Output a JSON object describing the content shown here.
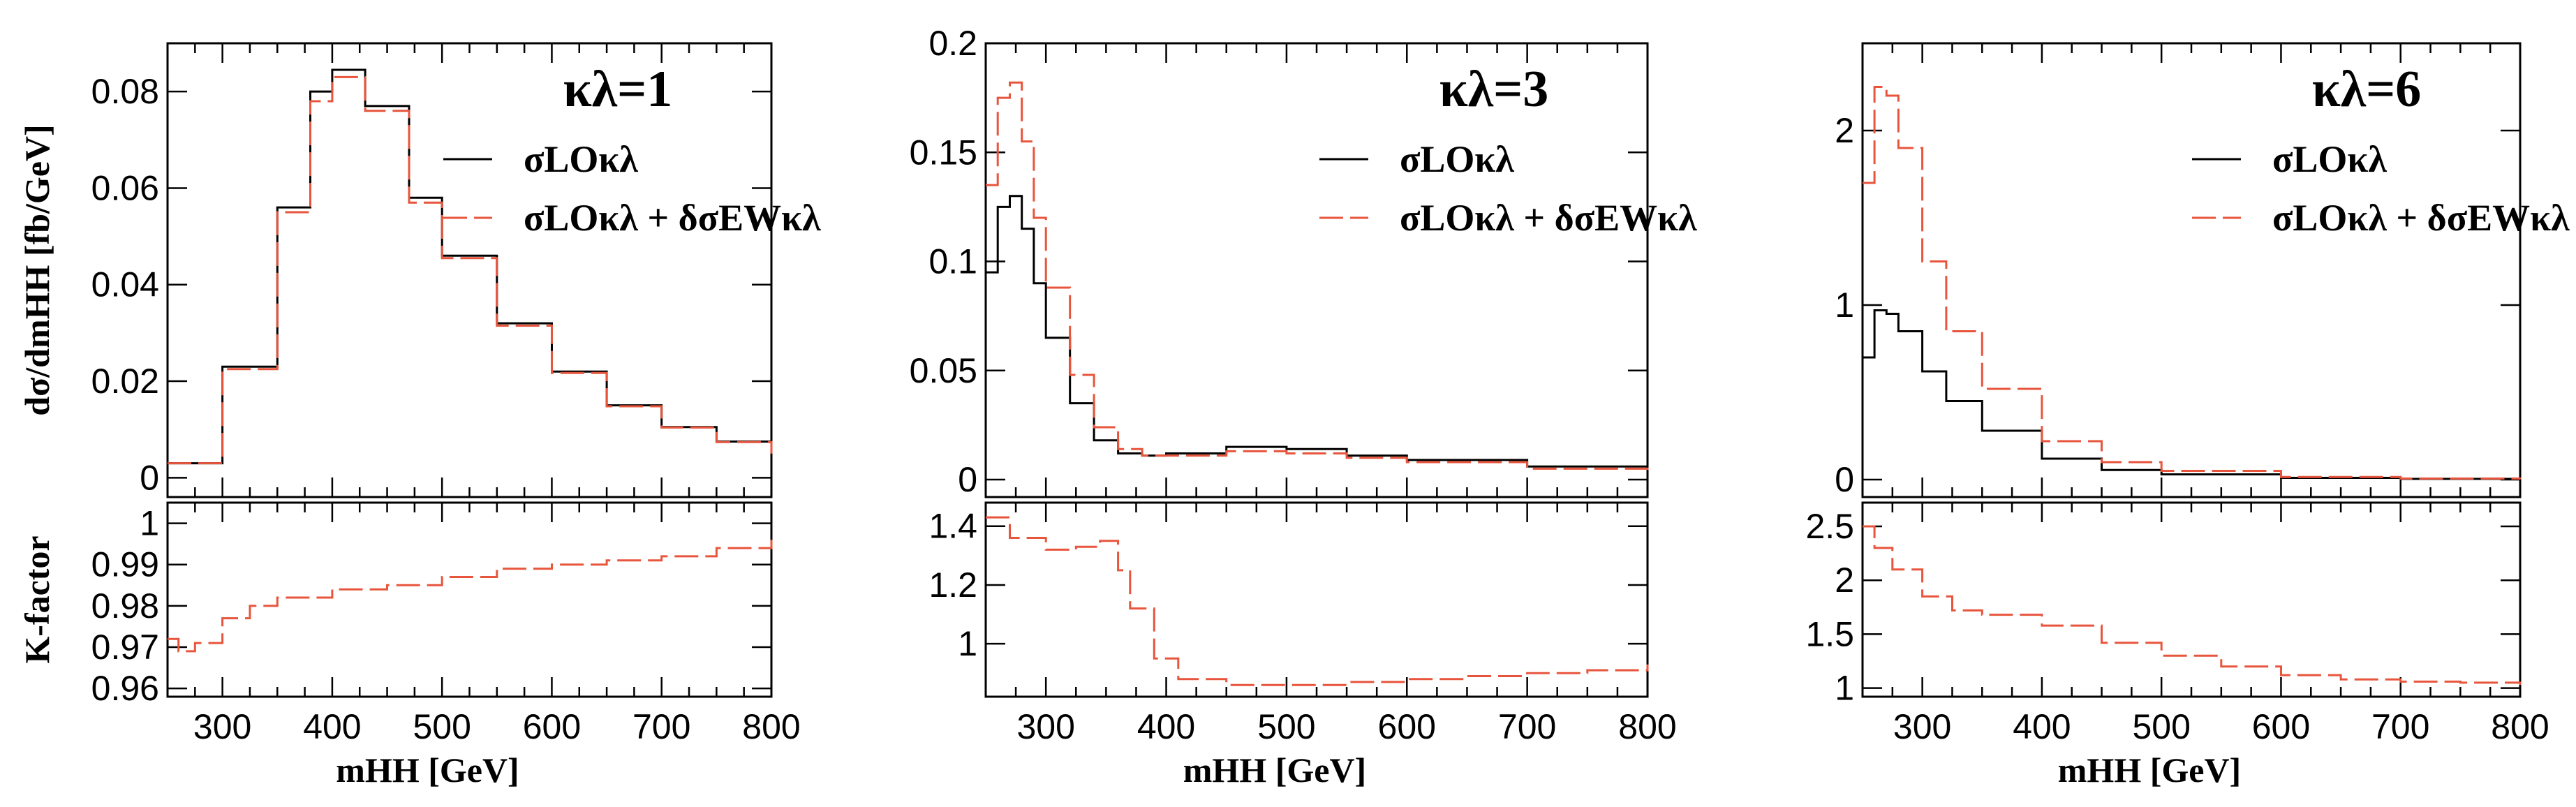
{
  "chart_data": [
    {
      "type": "line",
      "title": "κλ=1",
      "xlabel": "mHH [GeV]",
      "ylabel": "dσ/dmHH [fb/GeV]",
      "ratio_ylabel": "K-factor",
      "xlim": [
        250,
        800
      ],
      "ylim": [
        -0.004,
        0.09
      ],
      "ratio_ylim": [
        0.958,
        1.005
      ],
      "xticks": [
        300,
        400,
        500,
        600,
        700,
        800
      ],
      "xticklabels": [
        "300",
        "400",
        "500",
        "600",
        "700",
        "800"
      ],
      "yticks": [
        0,
        0.02,
        0.04,
        0.06,
        0.08
      ],
      "yticklabels": [
        "0",
        "0.02",
        "0.04",
        "0.06",
        "0.08"
      ],
      "ratio_yticks": [
        0.96,
        0.97,
        0.98,
        0.99,
        1.0
      ],
      "ratio_yticklabels": [
        "0.96",
        "0.97",
        "0.98",
        "0.99",
        "1"
      ],
      "legend": [
        {
          "label": "σLOκλ",
          "style": "solid",
          "color": "#000000"
        },
        {
          "label": "σLOκλ + δσEWκλ",
          "style": "dashed",
          "color": "#e8553d"
        }
      ],
      "legend_position": "top-right",
      "series": [
        {
          "name": "σLO",
          "color": "#000000",
          "style": "solid",
          "x": [
            250,
            300,
            350,
            380,
            400,
            430,
            470,
            500,
            550,
            600,
            650,
            700,
            750,
            800
          ],
          "values": [
            0.003,
            0.023,
            0.056,
            0.08,
            0.0845,
            0.077,
            0.058,
            0.046,
            0.032,
            0.022,
            0.015,
            0.0105,
            0.0075,
            0.005
          ]
        },
        {
          "name": "σLO + δσEW",
          "color": "#e8553d",
          "style": "dashed",
          "x": [
            250,
            300,
            350,
            380,
            400,
            430,
            470,
            500,
            550,
            600,
            650,
            700,
            750,
            800
          ],
          "values": [
            0.003,
            0.0225,
            0.055,
            0.078,
            0.083,
            0.076,
            0.057,
            0.0455,
            0.0315,
            0.0217,
            0.0148,
            0.0104,
            0.0074,
            0.005
          ]
        }
      ],
      "ratio_series": {
        "name": "K-factor",
        "color": "#e8553d",
        "x": [
          250,
          260,
          275,
          300,
          325,
          350,
          400,
          450,
          500,
          550,
          600,
          650,
          700,
          750,
          800
        ],
        "values": [
          0.972,
          0.969,
          0.971,
          0.977,
          0.98,
          0.982,
          0.984,
          0.985,
          0.987,
          0.989,
          0.99,
          0.991,
          0.992,
          0.994,
          0.996
        ]
      }
    },
    {
      "type": "line",
      "title": "κλ=3",
      "xlabel": "mHH [GeV]",
      "ylabel": "",
      "ratio_ylabel": "",
      "xlim": [
        250,
        800
      ],
      "ylim": [
        -0.008,
        0.2
      ],
      "ratio_ylim": [
        0.82,
        1.48
      ],
      "xticks": [
        300,
        400,
        500,
        600,
        700,
        800
      ],
      "xticklabels": [
        "300",
        "400",
        "500",
        "600",
        "700",
        "800"
      ],
      "yticks": [
        0,
        0.05,
        0.1,
        0.15,
        0.2
      ],
      "yticklabels": [
        "0",
        "0.05",
        "0.1",
        "0.15",
        "0.2"
      ],
      "ratio_yticks": [
        1.0,
        1.2,
        1.4
      ],
      "ratio_yticklabels": [
        "1",
        "1.2",
        "1.4"
      ],
      "legend": [
        {
          "label": "σLOκλ",
          "style": "solid",
          "color": "#000000"
        },
        {
          "label": "σLOκλ + δσEWκλ",
          "style": "dashed",
          "color": "#e8553d"
        }
      ],
      "legend_position": "top-right",
      "series": [
        {
          "name": "σLO",
          "color": "#000000",
          "style": "solid",
          "x": [
            250,
            260,
            270,
            280,
            290,
            300,
            320,
            340,
            360,
            380,
            400,
            450,
            500,
            550,
            600,
            700,
            800
          ],
          "values": [
            0.095,
            0.125,
            0.13,
            0.115,
            0.09,
            0.065,
            0.035,
            0.018,
            0.012,
            0.011,
            0.012,
            0.015,
            0.014,
            0.011,
            0.009,
            0.006,
            0.003
          ]
        },
        {
          "name": "σLO + δσEW",
          "color": "#e8553d",
          "style": "dashed",
          "x": [
            250,
            260,
            270,
            280,
            290,
            300,
            320,
            340,
            360,
            380,
            400,
            450,
            500,
            550,
            600,
            700,
            800
          ],
          "values": [
            0.135,
            0.175,
            0.182,
            0.155,
            0.12,
            0.088,
            0.048,
            0.024,
            0.014,
            0.011,
            0.011,
            0.013,
            0.012,
            0.01,
            0.008,
            0.005,
            0.003
          ]
        }
      ],
      "ratio_series": {
        "name": "K-factor",
        "color": "#e8553d",
        "x": [
          250,
          270,
          300,
          325,
          345,
          360,
          370,
          390,
          410,
          450,
          500,
          550,
          600,
          650,
          700,
          750,
          800
        ],
        "values": [
          1.43,
          1.36,
          1.32,
          1.33,
          1.35,
          1.25,
          1.12,
          0.95,
          0.88,
          0.86,
          0.86,
          0.87,
          0.88,
          0.89,
          0.9,
          0.91,
          0.93
        ]
      }
    },
    {
      "type": "line",
      "title": "κλ=6",
      "xlabel": "mHH [GeV]",
      "ylabel": "",
      "ratio_ylabel": "",
      "xlim": [
        250,
        800
      ],
      "ylim": [
        -0.1,
        2.5
      ],
      "ratio_ylim": [
        0.92,
        2.72
      ],
      "xticks": [
        300,
        400,
        500,
        600,
        700,
        800
      ],
      "xticklabels": [
        "300",
        "400",
        "500",
        "600",
        "700",
        "800"
      ],
      "yticks": [
        0,
        1,
        2
      ],
      "yticklabels": [
        "0",
        "1",
        "2"
      ],
      "ratio_yticks": [
        1,
        1.5,
        2,
        2.5
      ],
      "ratio_yticklabels": [
        "1",
        "1.5",
        "2",
        "2.5"
      ],
      "legend": [
        {
          "label": "σLOκλ",
          "style": "solid",
          "color": "#000000"
        },
        {
          "label": "σLOκλ + δσEWκλ",
          "style": "dashed",
          "color": "#e8553d"
        }
      ],
      "legend_position": "top-right",
      "series": [
        {
          "name": "σLO",
          "color": "#000000",
          "style": "solid",
          "x": [
            250,
            260,
            270,
            280,
            300,
            320,
            350,
            400,
            450,
            500,
            600,
            700,
            800
          ],
          "values": [
            0.7,
            0.97,
            0.95,
            0.85,
            0.62,
            0.45,
            0.28,
            0.12,
            0.055,
            0.03,
            0.01,
            0.004,
            0.002
          ]
        },
        {
          "name": "σLO + δσEW",
          "color": "#e8553d",
          "style": "dashed",
          "x": [
            250,
            260,
            270,
            280,
            300,
            320,
            350,
            400,
            450,
            500,
            600,
            700,
            800
          ],
          "values": [
            1.7,
            2.25,
            2.2,
            1.9,
            1.25,
            0.85,
            0.52,
            0.22,
            0.1,
            0.05,
            0.015,
            0.006,
            0.002
          ]
        }
      ],
      "ratio_series": {
        "name": "K-factor",
        "color": "#e8553d",
        "x": [
          250,
          260,
          275,
          300,
          325,
          350,
          400,
          450,
          500,
          550,
          600,
          650,
          700,
          750,
          800
        ],
        "values": [
          2.5,
          2.3,
          2.1,
          1.85,
          1.72,
          1.68,
          1.58,
          1.42,
          1.3,
          1.2,
          1.12,
          1.08,
          1.06,
          1.05,
          1.03
        ]
      }
    }
  ]
}
